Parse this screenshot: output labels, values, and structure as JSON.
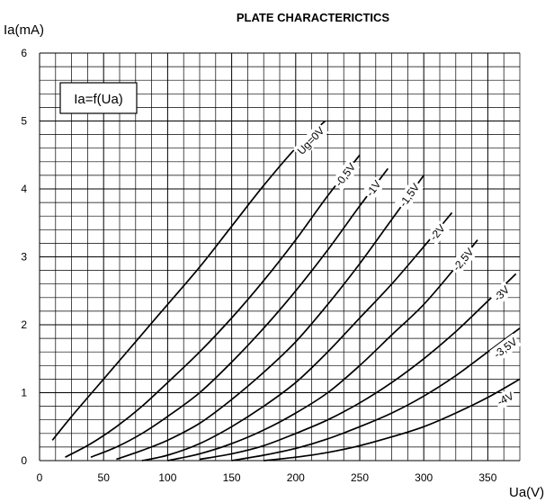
{
  "chart_data": {
    "type": "line",
    "title": "PLATE CHARACTERICTICS",
    "xlabel": "Ua(V)",
    "ylabel": "Ia(mA)",
    "annotation": "Ia=f(Ua)",
    "xlim": [
      0,
      375
    ],
    "ylim": [
      0,
      6
    ],
    "x_ticks": [
      "0",
      "50",
      "100",
      "150",
      "200",
      "250",
      "300",
      "350"
    ],
    "y_ticks": [
      "0",
      "1",
      "2",
      "3",
      "4",
      "5",
      "6"
    ],
    "grid": true,
    "series": [
      {
        "name": "Ug=0V",
        "points": [
          [
            10,
            0.3
          ],
          [
            25,
            0.65
          ],
          [
            50,
            1.2
          ],
          [
            75,
            1.75
          ],
          [
            100,
            2.3
          ],
          [
            125,
            2.85
          ],
          [
            150,
            3.45
          ],
          [
            175,
            4.05
          ],
          [
            200,
            4.6
          ],
          [
            223,
            5.0
          ]
        ]
      },
      {
        "name": "-0,5V",
        "points": [
          [
            20,
            0.05
          ],
          [
            40,
            0.25
          ],
          [
            60,
            0.5
          ],
          [
            80,
            0.8
          ],
          [
            100,
            1.15
          ],
          [
            125,
            1.6
          ],
          [
            150,
            2.1
          ],
          [
            175,
            2.65
          ],
          [
            200,
            3.25
          ],
          [
            225,
            3.9
          ],
          [
            250,
            4.5
          ]
        ]
      },
      {
        "name": "-1V",
        "points": [
          [
            40,
            0.05
          ],
          [
            60,
            0.2
          ],
          [
            80,
            0.4
          ],
          [
            100,
            0.65
          ],
          [
            125,
            1.0
          ],
          [
            150,
            1.45
          ],
          [
            175,
            1.95
          ],
          [
            200,
            2.5
          ],
          [
            225,
            3.1
          ],
          [
            250,
            3.75
          ],
          [
            272,
            4.3
          ]
        ]
      },
      {
        "name": "-1,5V",
        "points": [
          [
            60,
            0.02
          ],
          [
            80,
            0.15
          ],
          [
            100,
            0.3
          ],
          [
            125,
            0.55
          ],
          [
            150,
            0.9
          ],
          [
            175,
            1.3
          ],
          [
            200,
            1.75
          ],
          [
            225,
            2.3
          ],
          [
            250,
            2.9
          ],
          [
            275,
            3.55
          ],
          [
            300,
            4.2
          ]
        ]
      },
      {
        "name": "-2V",
        "points": [
          [
            80,
            0.0
          ],
          [
            100,
            0.08
          ],
          [
            125,
            0.25
          ],
          [
            150,
            0.5
          ],
          [
            175,
            0.8
          ],
          [
            200,
            1.15
          ],
          [
            225,
            1.6
          ],
          [
            250,
            2.1
          ],
          [
            275,
            2.6
          ],
          [
            300,
            3.15
          ],
          [
            322,
            3.65
          ]
        ]
      },
      {
        "name": "-2,5V",
        "points": [
          [
            100,
            0.0
          ],
          [
            125,
            0.1
          ],
          [
            150,
            0.25
          ],
          [
            175,
            0.45
          ],
          [
            200,
            0.7
          ],
          [
            225,
            1.0
          ],
          [
            250,
            1.4
          ],
          [
            275,
            1.85
          ],
          [
            300,
            2.3
          ],
          [
            325,
            2.85
          ],
          [
            342,
            3.25
          ]
        ]
      },
      {
        "name": "-3V",
        "points": [
          [
            125,
            0.02
          ],
          [
            150,
            0.1
          ],
          [
            175,
            0.22
          ],
          [
            200,
            0.4
          ],
          [
            225,
            0.6
          ],
          [
            250,
            0.85
          ],
          [
            275,
            1.15
          ],
          [
            300,
            1.5
          ],
          [
            325,
            1.9
          ],
          [
            350,
            2.35
          ],
          [
            372,
            2.75
          ]
        ]
      },
      {
        "name": "-3,5V",
        "points": [
          [
            150,
            0.0
          ],
          [
            175,
            0.08
          ],
          [
            200,
            0.18
          ],
          [
            225,
            0.32
          ],
          [
            250,
            0.5
          ],
          [
            275,
            0.7
          ],
          [
            300,
            0.95
          ],
          [
            325,
            1.25
          ],
          [
            350,
            1.6
          ],
          [
            375,
            1.95
          ]
        ]
      },
      {
        "name": "-4V",
        "points": [
          [
            175,
            0.0
          ],
          [
            200,
            0.05
          ],
          [
            225,
            0.12
          ],
          [
            250,
            0.22
          ],
          [
            275,
            0.35
          ],
          [
            300,
            0.5
          ],
          [
            325,
            0.7
          ],
          [
            350,
            0.93
          ],
          [
            375,
            1.2
          ]
        ]
      }
    ]
  }
}
